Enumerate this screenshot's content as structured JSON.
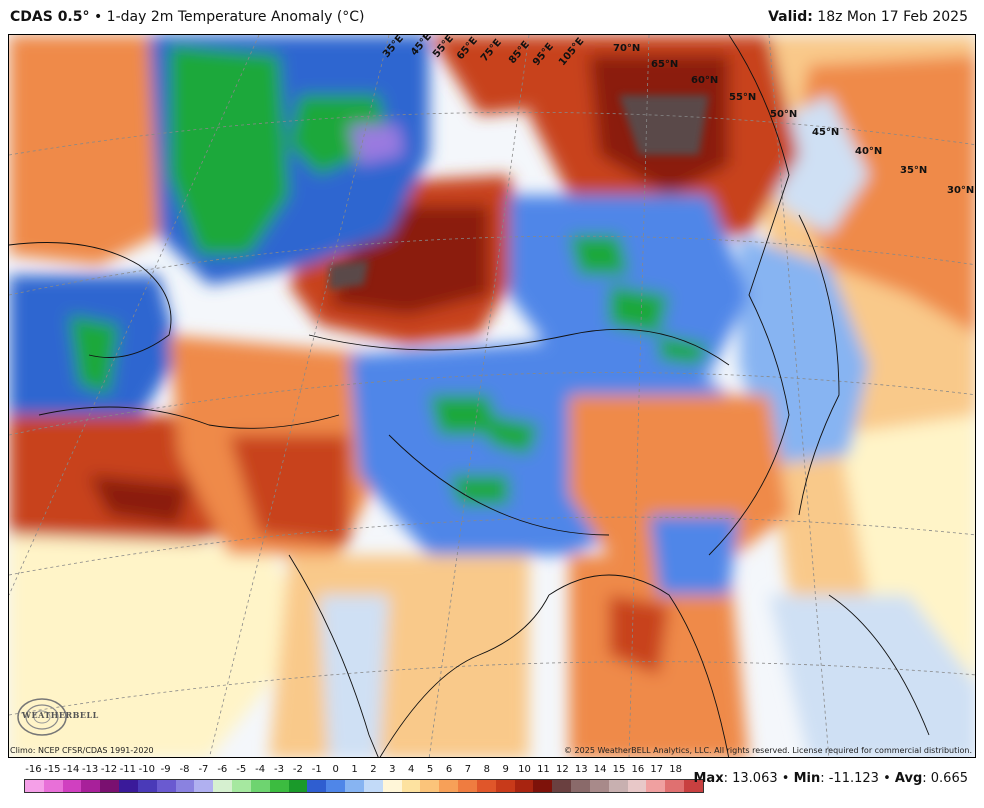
{
  "header": {
    "model": "CDAS 0.5",
    "degree": "°",
    "separator": "•",
    "product": "1-day 2m Temperature Anomaly (°C)",
    "valid_label": "Valid:",
    "valid_time": "18z Mon 17 Feb 2025"
  },
  "map": {
    "lat_labels": [
      "70°N",
      "65°N",
      "60°N",
      "55°N",
      "50°N",
      "45°N",
      "40°N",
      "35°N",
      "30°N"
    ],
    "lon_labels": [
      "35°E",
      "45°E",
      "55°E",
      "65°E",
      "75°E",
      "85°E",
      "95°E",
      "105°E"
    ],
    "colors": {
      "very_warm": "#5a4a4a",
      "warm_dark": "#8b1a0a",
      "warm": "#c8421a",
      "mild": "#ef8a4a",
      "slight": "#f9c98a",
      "neutral": "#fff4c8",
      "cool_slight": "#cfe0f4",
      "cool": "#6f9fe0",
      "cold": "#2f66d0",
      "very_cold": "#1fa83a",
      "extreme_cold": "#9a7ae0"
    }
  },
  "footer": {
    "climo": "Climo: NCEP CFSR/CDAS 1991-2020",
    "copyright": "© 2025 WeatherBELL Analytics, LLC. All rights reserved. License required for commercial distribution.",
    "logo_text": "WEATHERBELL"
  },
  "colorbar": {
    "labels": [
      "-16",
      "-15",
      "-14",
      "-13",
      "-12",
      "-11",
      "-10",
      "-9",
      "-8",
      "-7",
      "-6",
      "-5",
      "-4",
      "-3",
      "-2",
      "-1",
      "0",
      "1",
      "2",
      "3",
      "4",
      "5",
      "6",
      "7",
      "8",
      "9",
      "10",
      "11",
      "12",
      "13",
      "14",
      "15",
      "16",
      "17",
      "18"
    ],
    "colors": [
      "#f5a0e8",
      "#e870d8",
      "#d040c0",
      "#a8209a",
      "#7a1070",
      "#3a1a9a",
      "#4a3ab8",
      "#6a5ad0",
      "#8a82e0",
      "#b0b0f0",
      "#d6f0d0",
      "#a6e8a0",
      "#6ed470",
      "#3cbc40",
      "#1a9a2a",
      "#2f5ed0",
      "#4f86e8",
      "#87b4f2",
      "#c2daf8",
      "#fff6d8",
      "#fde2a0",
      "#fbc47a",
      "#f7a058",
      "#ef7c40",
      "#e0562a",
      "#c83a1a",
      "#a82410",
      "#7e120a",
      "#6a4040",
      "#8a6a6a",
      "#a88a8a",
      "#c8b0b0",
      "#e8c8c8",
      "#f0a0a0",
      "#e07070",
      "#c84040"
    ]
  },
  "stats": {
    "max_label": "Max",
    "max_value": ": 13.063",
    "min_label": "Min",
    "min_value": ": -11.123",
    "avg_label": "Avg",
    "avg_value": ": 0.665",
    "sep": "•"
  }
}
